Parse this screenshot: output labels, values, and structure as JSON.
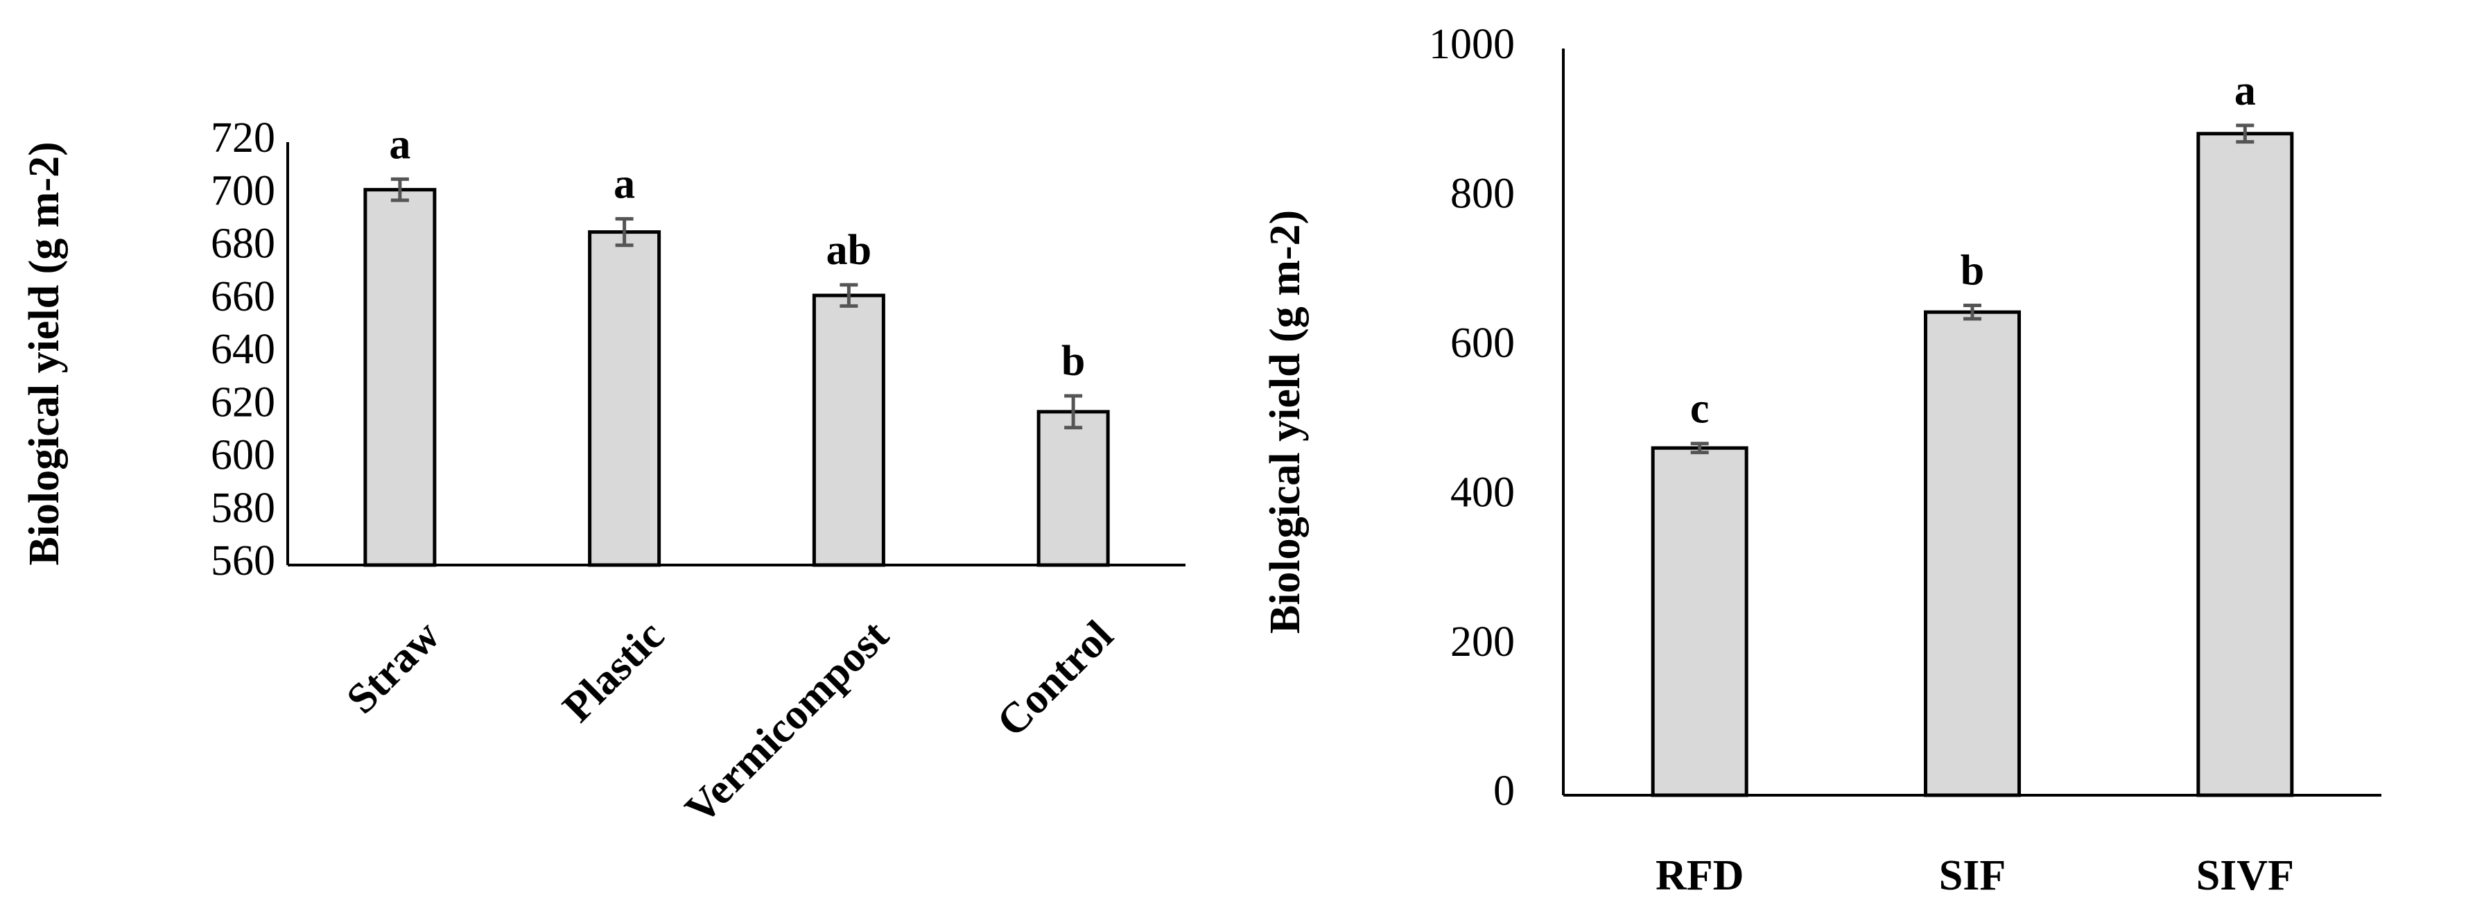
{
  "chart_data": [
    {
      "type": "bar",
      "categories": [
        "Straw",
        "Plastic",
        "Vermicompost",
        "Control"
      ],
      "values": [
        702,
        686,
        662,
        618
      ],
      "errors": [
        4,
        5,
        4,
        6
      ],
      "letters": [
        "a",
        "a",
        "ab",
        "b"
      ],
      "title": "",
      "xlabel": "",
      "ylabel": "Biological yield (g m-2)",
      "ylim": [
        560,
        720
      ],
      "yticks": [
        560,
        580,
        600,
        620,
        640,
        660,
        680,
        700,
        720
      ],
      "category_label_rotation": -45,
      "bar_color": "#d9d9d9",
      "grid": false,
      "legend": "none"
    },
    {
      "type": "bar",
      "categories": [
        "RFD",
        "SIF",
        "SIVF"
      ],
      "values": [
        465,
        647,
        886
      ],
      "errors": [
        6,
        9,
        11
      ],
      "letters": [
        "c",
        "b",
        "a"
      ],
      "title": "",
      "xlabel": "",
      "ylabel": "Biological yield (g m-2)",
      "ylim": [
        0,
        1000
      ],
      "yticks": [
        0,
        200,
        400,
        600,
        800,
        1000
      ],
      "category_label_rotation": 0,
      "bar_color": "#d9d9d9",
      "grid": false,
      "legend": "none"
    }
  ]
}
